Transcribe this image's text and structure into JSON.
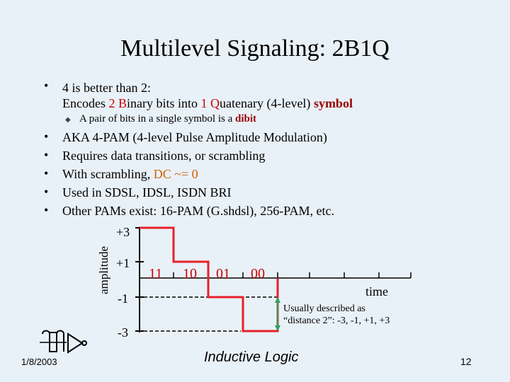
{
  "title": "Multilevel Signaling: 2B1Q",
  "bullet1": {
    "text": "4 is better than 2:",
    "line2_a": "Encodes ",
    "line2_b": "2",
    "line2_c": " ",
    "line2_d": "B",
    "line2_e": "inary bits into ",
    "line2_f": "1",
    "line2_g": " ",
    "line2_h": "Q",
    "line2_i": "uatenary (4-level) ",
    "line2_j": "symbol",
    "sub_a": "A pair of bits in a single symbol is a ",
    "sub_b": "dibit"
  },
  "bullets": [
    "AKA 4-PAM (4-level Pulse Amplitude Modulation)",
    "Requires data transitions, or scrambling",
    "Used in SDSL, IDSL, ISDN BRI",
    "Other PAMs exist: 16-PAM (G.shdsl), 256-PAM, etc."
  ],
  "scrambling": {
    "a": "With scrambling, ",
    "b": "DC ~= 0"
  },
  "diagram": {
    "ylabel": "amplitude",
    "levels": [
      "+3",
      "+1",
      "-1",
      "-3"
    ],
    "symbols": [
      "11",
      "10",
      "01",
      "00"
    ],
    "xlabel": "time",
    "note_line1": "Usually described as",
    "note_line2": "“distance 2”: -3, -1, +1, +3",
    "colors": {
      "signal": "#e8202a",
      "accent": "#2aa35a"
    }
  },
  "footer": {
    "date": "1/8/2003",
    "company": "Inductive Logic",
    "page": "12"
  }
}
